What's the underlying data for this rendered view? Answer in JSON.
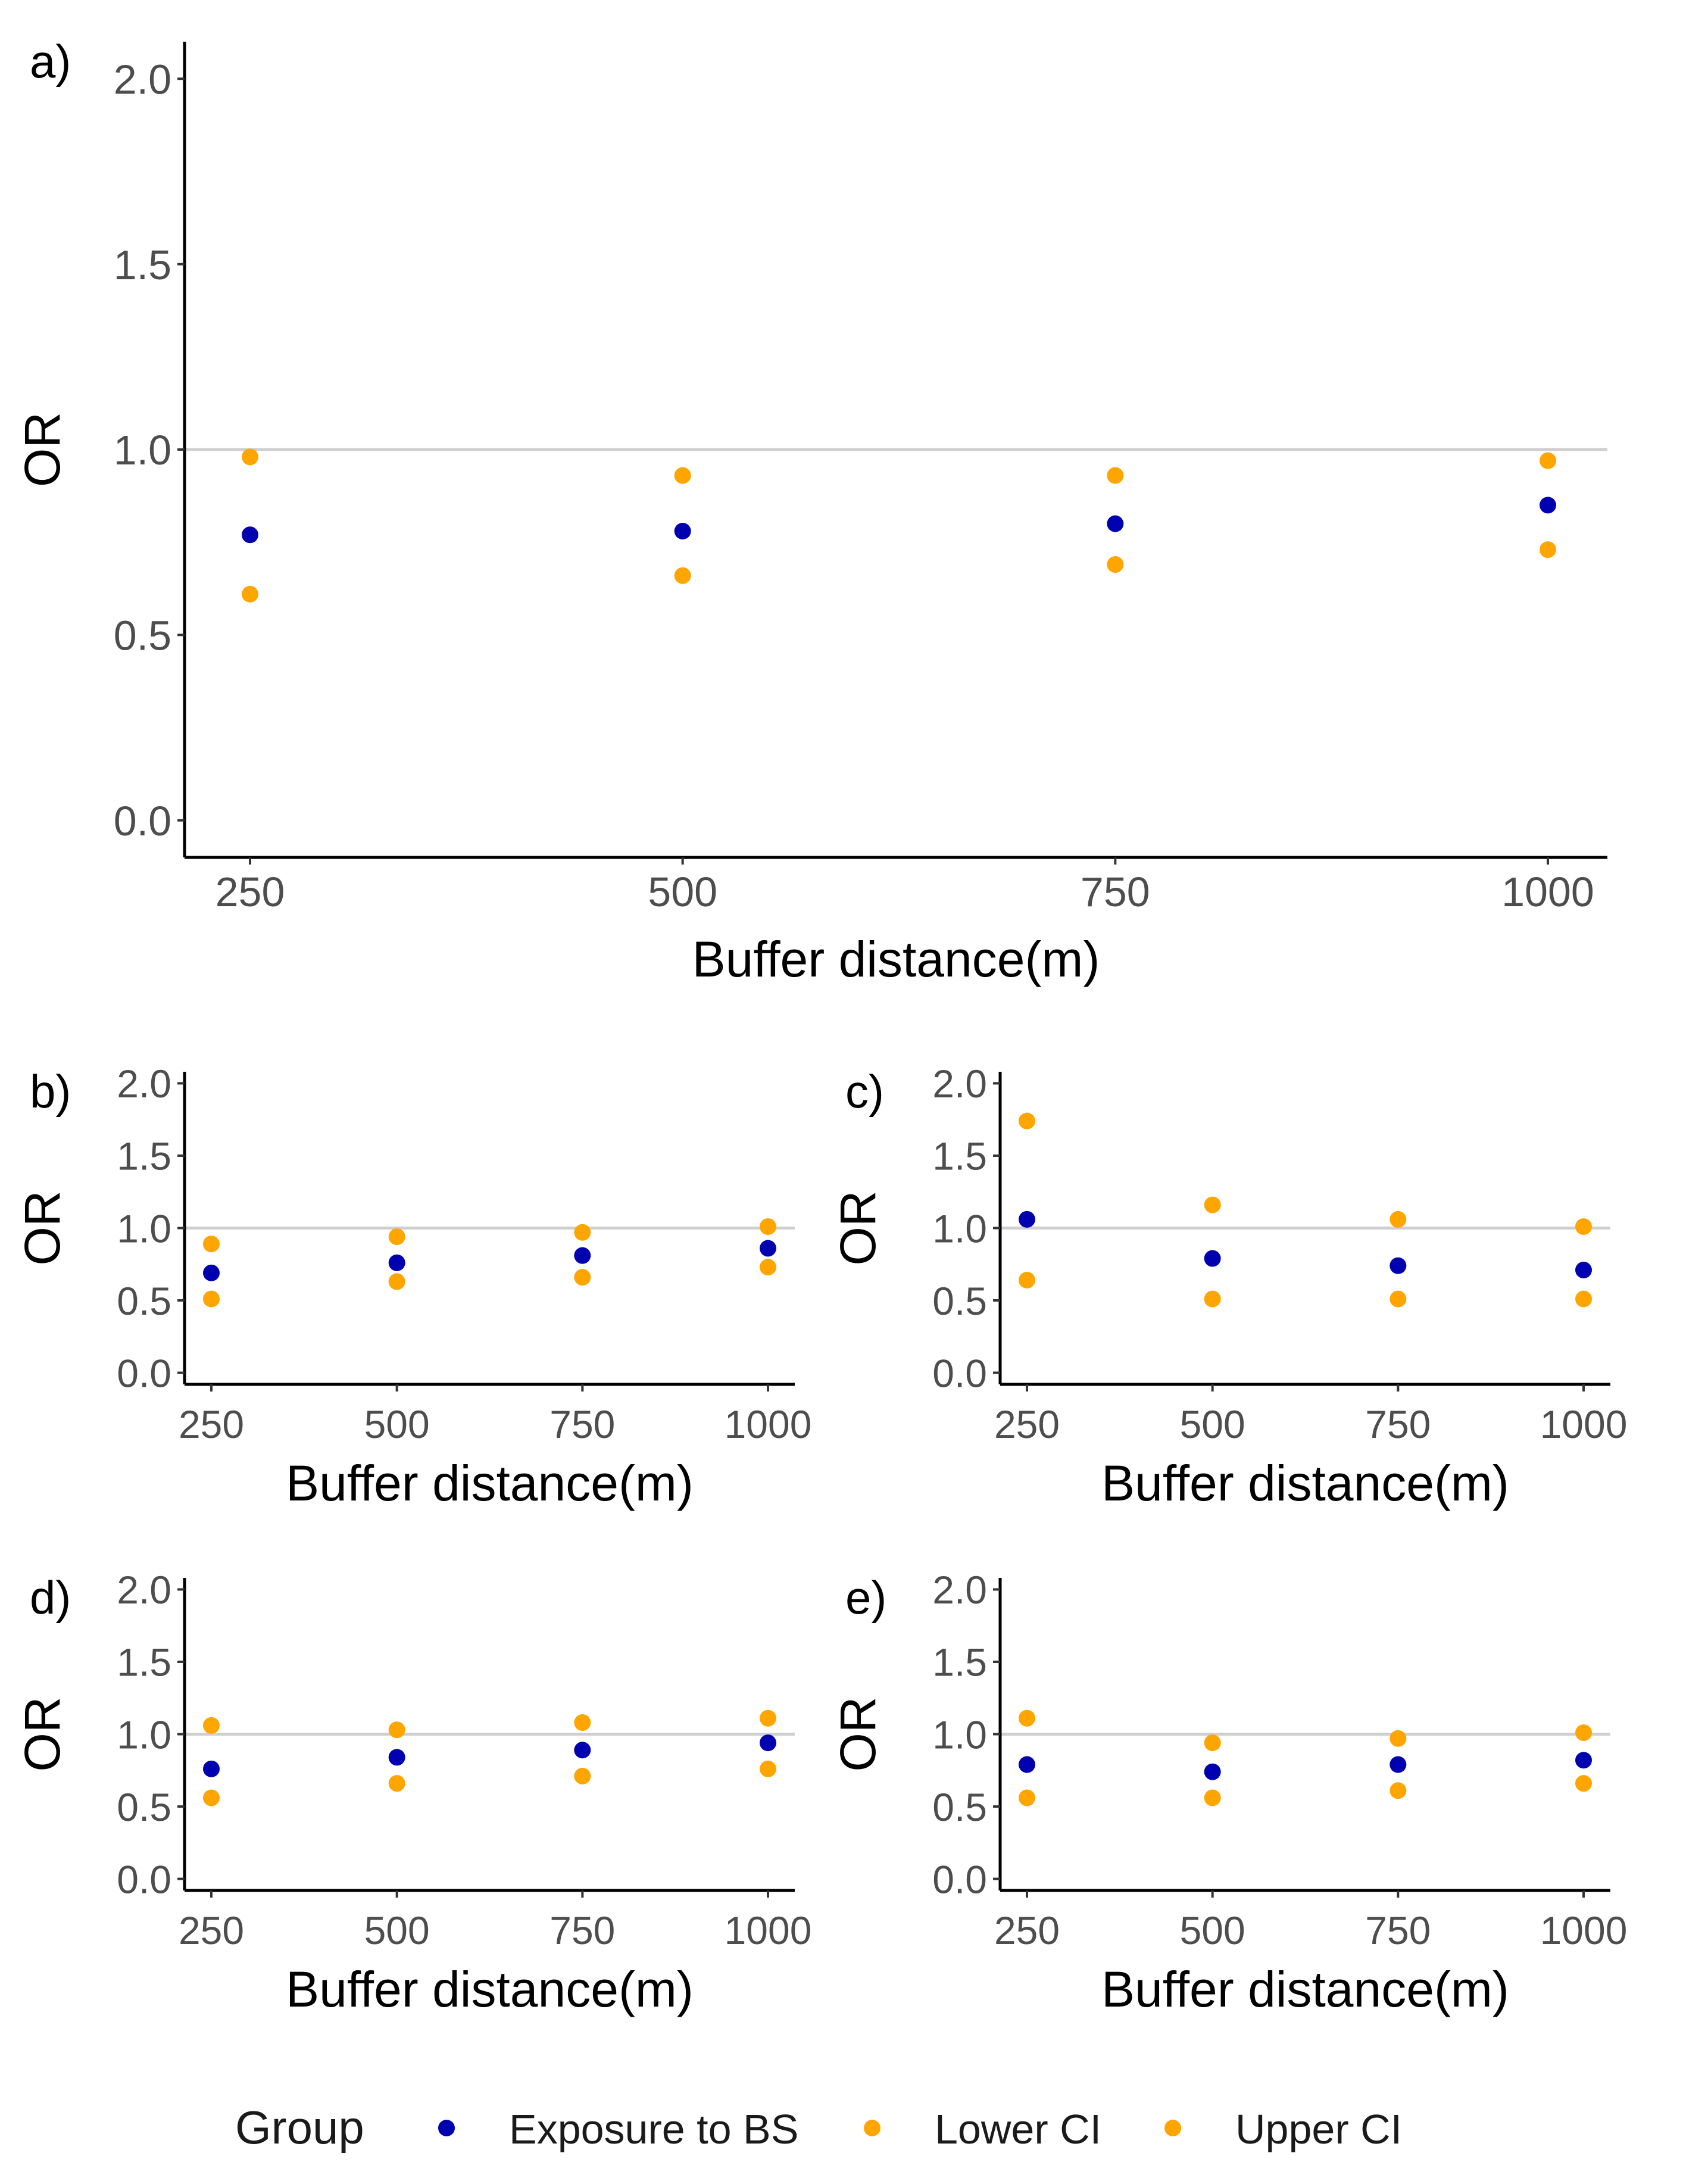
{
  "colors": {
    "exposure": "#0000b0",
    "lower": "#ffa500",
    "upper": "#ffa500",
    "reference_line": "#cfcfcf"
  },
  "legend": {
    "title": "Group",
    "entries": [
      {
        "key": "exposure",
        "label": "Exposure to BS"
      },
      {
        "key": "lower",
        "label": "Lower CI"
      },
      {
        "key": "upper",
        "label": "Upper CI"
      }
    ]
  },
  "chart_data": [
    {
      "panel": "a)",
      "type": "scatter",
      "xlabel": "Buffer distance(m)",
      "ylabel": "OR",
      "categories": [
        "250",
        "500",
        "750",
        "1000"
      ],
      "ylim": [
        -0.1,
        2.1
      ],
      "yticks": [
        "0.0",
        "0.5",
        "1.0",
        "1.5",
        "2.0"
      ],
      "reference_line": 1.0,
      "series": [
        {
          "name": "Exposure to BS",
          "key": "exposure",
          "values": [
            0.77,
            0.78,
            0.8,
            0.85
          ]
        },
        {
          "name": "Lower CI",
          "key": "lower",
          "values": [
            0.61,
            0.66,
            0.69,
            0.73
          ]
        },
        {
          "name": "Upper CI",
          "key": "upper",
          "values": [
            0.98,
            0.93,
            0.93,
            0.97
          ]
        }
      ]
    },
    {
      "panel": "b)",
      "type": "scatter",
      "xlabel": "Buffer distance(m)",
      "ylabel": "OR",
      "categories": [
        "250",
        "500",
        "750",
        "1000"
      ],
      "ylim": [
        -0.08,
        2.08
      ],
      "yticks": [
        "0.0",
        "0.5",
        "1.0",
        "1.5",
        "2.0"
      ],
      "reference_line": 1.0,
      "series": [
        {
          "name": "Exposure to BS",
          "key": "exposure",
          "values": [
            0.69,
            0.76,
            0.81,
            0.86
          ]
        },
        {
          "name": "Lower CI",
          "key": "lower",
          "values": [
            0.51,
            0.63,
            0.66,
            0.73
          ]
        },
        {
          "name": "Upper CI",
          "key": "upper",
          "values": [
            0.89,
            0.94,
            0.97,
            1.01
          ]
        }
      ]
    },
    {
      "panel": "c)",
      "type": "scatter",
      "xlabel": "Buffer distance(m)",
      "ylabel": "OR",
      "categories": [
        "250",
        "500",
        "750",
        "1000"
      ],
      "ylim": [
        -0.08,
        2.08
      ],
      "yticks": [
        "0.0",
        "0.5",
        "1.0",
        "1.5",
        "2.0"
      ],
      "reference_line": 1.0,
      "series": [
        {
          "name": "Exposure to BS",
          "key": "exposure",
          "values": [
            1.06,
            0.79,
            0.74,
            0.71
          ]
        },
        {
          "name": "Lower CI",
          "key": "lower",
          "values": [
            0.64,
            0.51,
            0.51,
            0.51
          ]
        },
        {
          "name": "Upper CI",
          "key": "upper",
          "values": [
            1.74,
            1.16,
            1.06,
            1.01
          ]
        }
      ]
    },
    {
      "panel": "d)",
      "type": "scatter",
      "xlabel": "Buffer distance(m)",
      "ylabel": "OR",
      "categories": [
        "250",
        "500",
        "750",
        "1000"
      ],
      "ylim": [
        -0.08,
        2.08
      ],
      "yticks": [
        "0.0",
        "0.5",
        "1.0",
        "1.5",
        "2.0"
      ],
      "reference_line": 1.0,
      "series": [
        {
          "name": "Exposure to BS",
          "key": "exposure",
          "values": [
            0.76,
            0.84,
            0.89,
            0.94
          ]
        },
        {
          "name": "Lower CI",
          "key": "lower",
          "values": [
            0.56,
            0.66,
            0.71,
            0.76
          ]
        },
        {
          "name": "Upper CI",
          "key": "upper",
          "values": [
            1.06,
            1.03,
            1.08,
            1.11
          ]
        }
      ]
    },
    {
      "panel": "e)",
      "type": "scatter",
      "xlabel": "Buffer distance(m)",
      "ylabel": "OR",
      "categories": [
        "250",
        "500",
        "750",
        "1000"
      ],
      "ylim": [
        -0.08,
        2.08
      ],
      "yticks": [
        "0.0",
        "0.5",
        "1.0",
        "1.5",
        "2.0"
      ],
      "reference_line": 1.0,
      "series": [
        {
          "name": "Exposure to BS",
          "key": "exposure",
          "values": [
            0.79,
            0.74,
            0.79,
            0.82
          ]
        },
        {
          "name": "Lower CI",
          "key": "lower",
          "values": [
            0.56,
            0.56,
            0.61,
            0.66
          ]
        },
        {
          "name": "Upper CI",
          "key": "upper",
          "values": [
            1.11,
            0.94,
            0.97,
            1.01
          ]
        }
      ]
    }
  ]
}
